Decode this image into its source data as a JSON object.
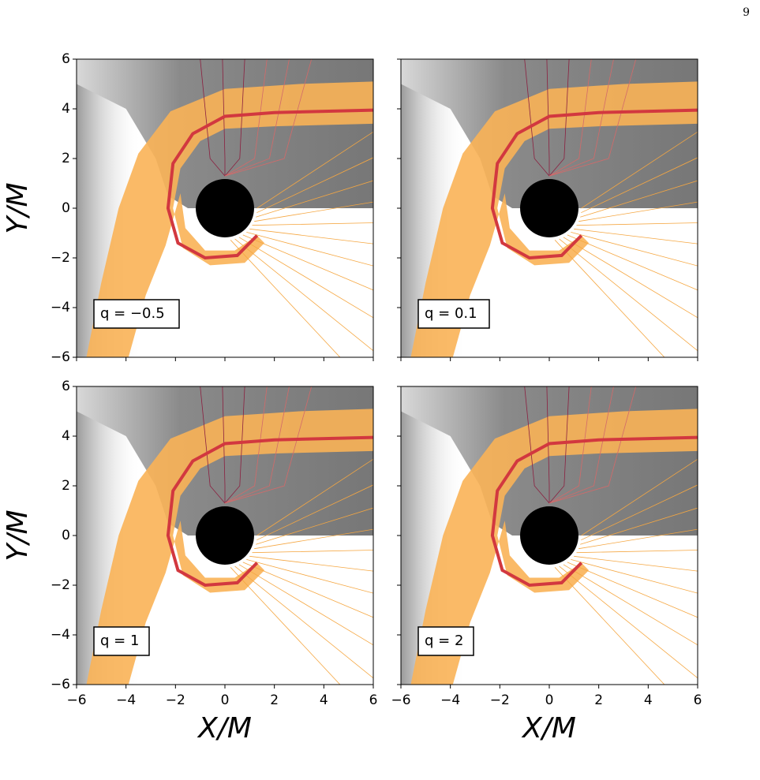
{
  "page_number": "9",
  "figure": {
    "xlabel": "X/M",
    "ylabel": "Y/M",
    "xlim": [
      -6,
      6
    ],
    "ylim": [
      -6,
      6
    ],
    "xticks": [
      {
        "value": -6,
        "label": "−6"
      },
      {
        "value": -4,
        "label": "−4"
      },
      {
        "value": -2,
        "label": "−2"
      },
      0,
      2,
      4,
      6
    ],
    "yticks": [
      {
        "value": -6,
        "label": "−6"
      },
      {
        "value": -4,
        "label": "−4"
      },
      {
        "value": -2,
        "label": "−2"
      },
      0,
      2,
      4,
      6
    ],
    "panels": [
      {
        "label": "q = −0.5"
      },
      {
        "label": "q = 0.1"
      },
      {
        "label": "q = 1"
      },
      {
        "label": "q = 2"
      }
    ]
  }
}
